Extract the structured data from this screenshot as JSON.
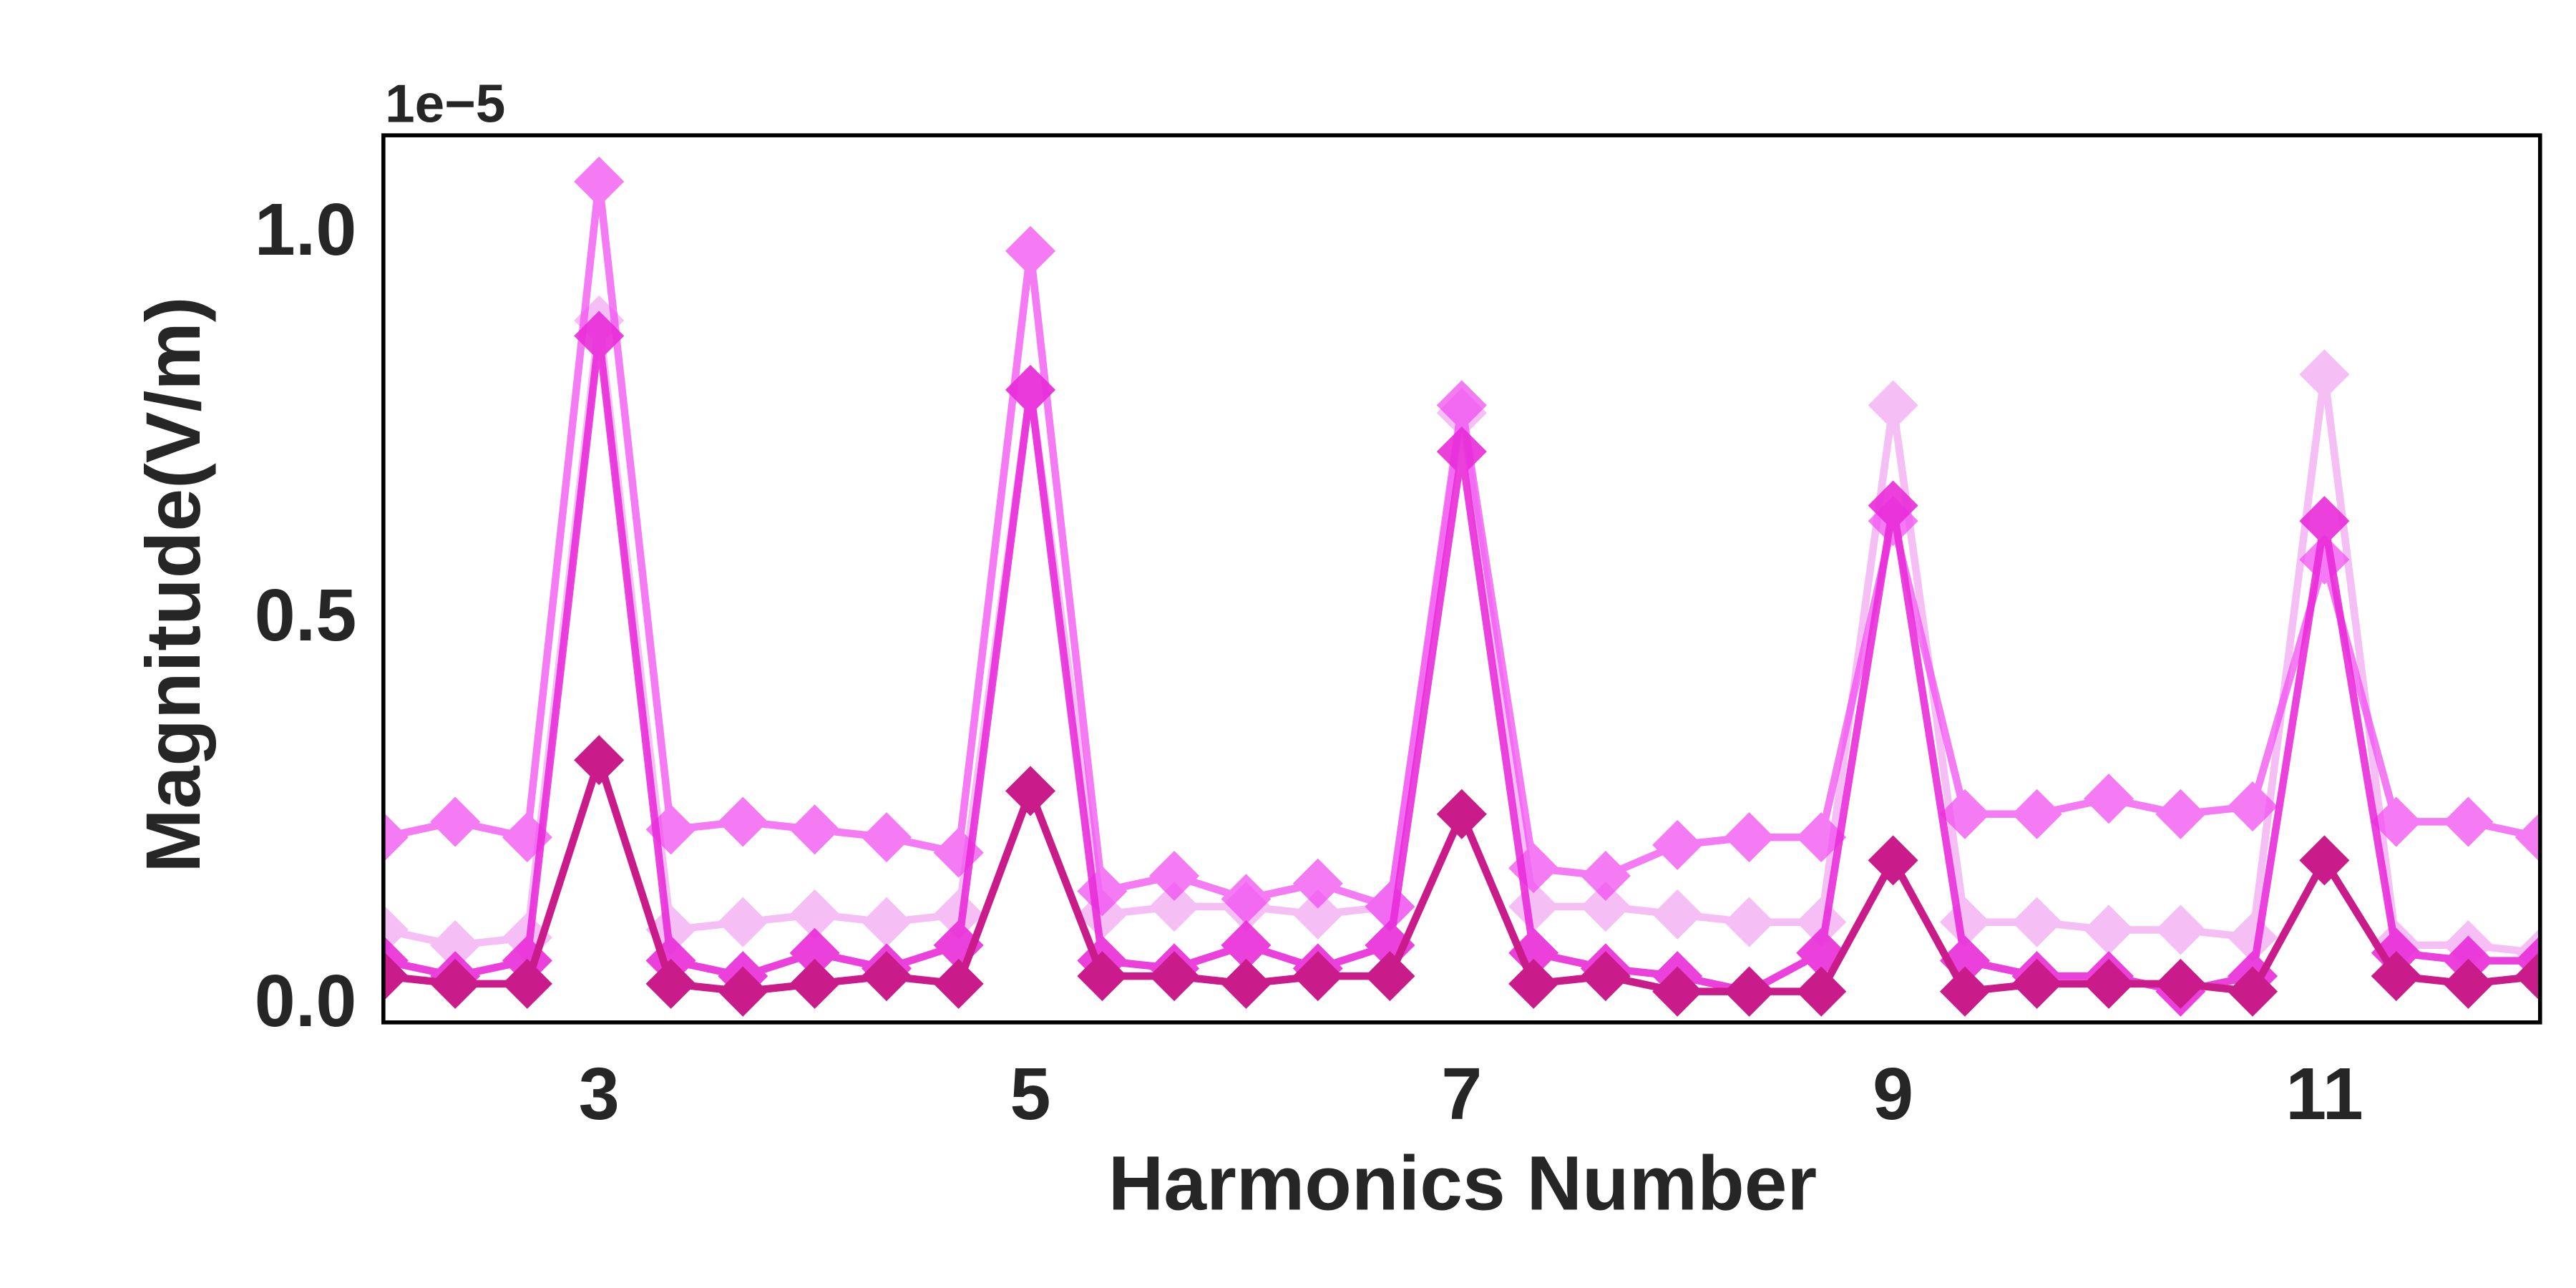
{
  "chart_data": {
    "type": "line",
    "xlabel": "Harmonics Number",
    "ylabel": "Magnitude(V/m)",
    "y_offset_text": "1e−5",
    "y_scale_multiplier": 1e-05,
    "xlim": [
      2.0,
      12.0
    ],
    "ylim": [
      -0.03,
      1.12
    ],
    "x_ticks": [
      3,
      5,
      7,
      9,
      11
    ],
    "x_tick_labels": [
      "3",
      "5",
      "7",
      "9",
      "11"
    ],
    "y_ticks": [
      0.0,
      0.5,
      1.0
    ],
    "y_tick_labels": [
      "0.0",
      "0.5",
      "1.0"
    ],
    "grid": false,
    "marker": "diamond",
    "x": [
      2.0,
      2.333,
      2.667,
      3.0,
      3.333,
      3.667,
      4.0,
      4.333,
      4.667,
      5.0,
      5.333,
      5.667,
      6.0,
      6.333,
      6.667,
      7.0,
      7.333,
      7.667,
      8.0,
      8.333,
      8.667,
      9.0,
      9.333,
      9.667,
      10.0,
      10.333,
      10.667,
      11.0,
      11.333,
      11.667,
      12.0
    ],
    "series": [
      {
        "color": "#e75fe6",
        "opacity": 0.4,
        "values": [
          0.09,
          0.07,
          0.08,
          0.88,
          0.09,
          0.1,
          0.11,
          0.1,
          0.11,
          0.79,
          0.11,
          0.12,
          0.12,
          0.11,
          0.12,
          0.76,
          0.12,
          0.12,
          0.11,
          0.1,
          0.1,
          0.77,
          0.1,
          0.1,
          0.09,
          0.09,
          0.08,
          0.81,
          0.07,
          0.07,
          0.06
        ]
      },
      {
        "color": "#f14ff0",
        "opacity": 0.75,
        "values": [
          0.21,
          0.23,
          0.21,
          1.06,
          0.22,
          0.23,
          0.22,
          0.21,
          0.19,
          0.97,
          0.14,
          0.16,
          0.13,
          0.15,
          0.12,
          0.77,
          0.17,
          0.16,
          0.2,
          0.21,
          0.21,
          0.62,
          0.24,
          0.24,
          0.26,
          0.24,
          0.25,
          0.57,
          0.23,
          0.23,
          0.21
        ]
      },
      {
        "color": "#e92cd9",
        "opacity": 0.9,
        "values": [
          0.05,
          0.03,
          0.05,
          0.86,
          0.05,
          0.03,
          0.06,
          0.04,
          0.07,
          0.79,
          0.05,
          0.04,
          0.07,
          0.04,
          0.07,
          0.71,
          0.06,
          0.04,
          0.03,
          0.01,
          0.06,
          0.64,
          0.05,
          0.03,
          0.03,
          0.01,
          0.03,
          0.62,
          0.06,
          0.05,
          0.05
        ]
      },
      {
        "color": "#c91b8a",
        "opacity": 1.0,
        "values": [
          0.03,
          0.02,
          0.02,
          0.31,
          0.02,
          0.01,
          0.02,
          0.03,
          0.02,
          0.27,
          0.03,
          0.03,
          0.02,
          0.03,
          0.03,
          0.24,
          0.02,
          0.03,
          0.01,
          0.01,
          0.01,
          0.18,
          0.01,
          0.02,
          0.02,
          0.02,
          0.01,
          0.18,
          0.03,
          0.02,
          0.03
        ]
      }
    ]
  }
}
